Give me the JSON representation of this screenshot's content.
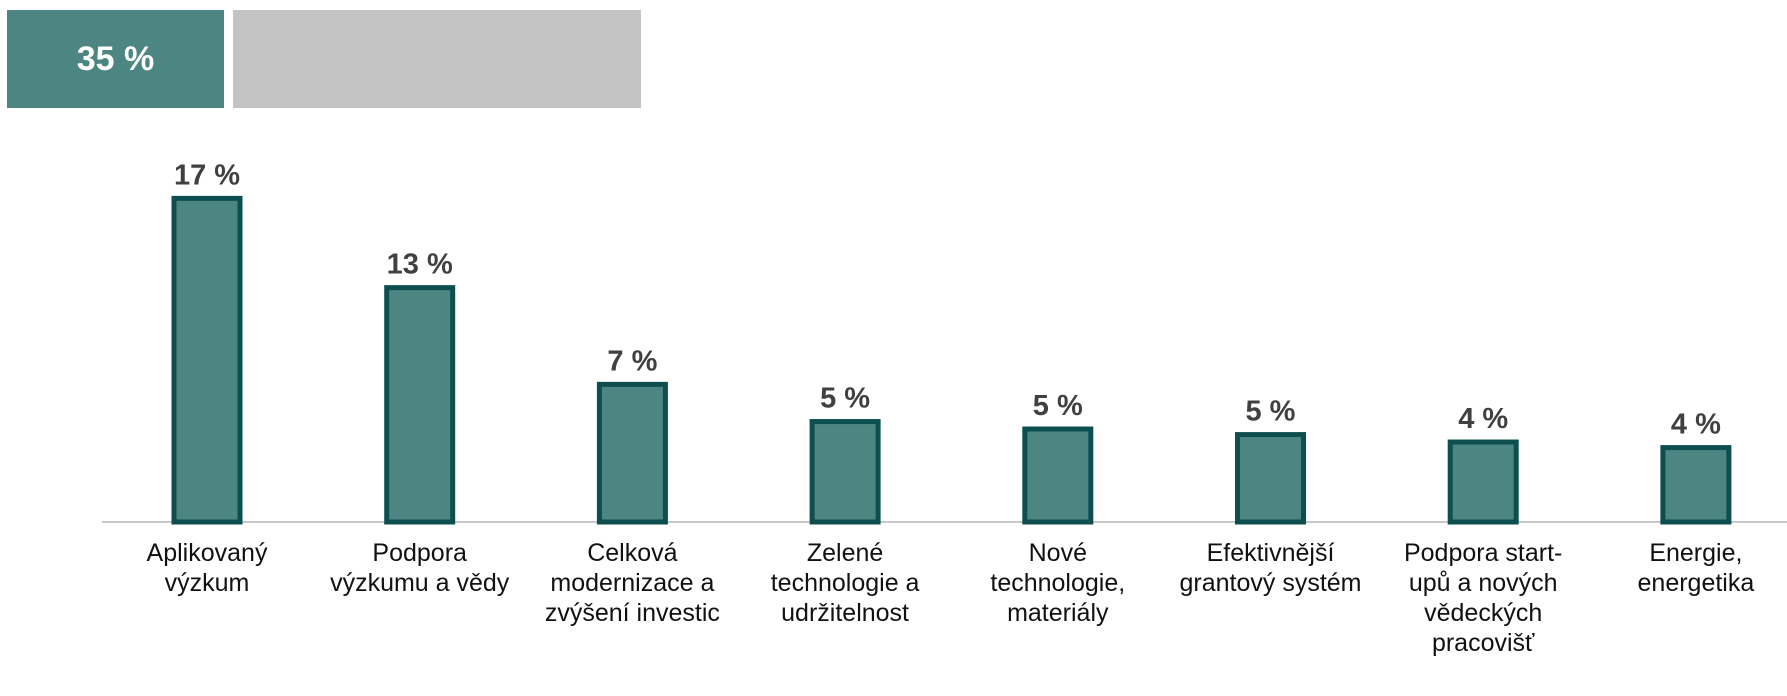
{
  "chart_data": {
    "type": "bar",
    "headline": "35 %",
    "categories": [
      "Aplikovaný výzkum",
      "Podpora výzkumu a vědy",
      "Celková modernizace a zvýšení investic",
      "Zelené technologie a udržitelnost",
      "Nové technologie, materiály",
      "Efektivnější grantový systém",
      "Podpora start-upů a nových vědeckých pracovišť",
      "Energie, energetika"
    ],
    "values": [
      17.4,
      12.6,
      7.4,
      5.4,
      5.0,
      4.7,
      4.3,
      4.0
    ],
    "value_labels": [
      "17 %",
      "13 %",
      "7 %",
      "5 %",
      "5 %",
      "5 %",
      "4 %",
      "4 %"
    ],
    "color": "#4d8582",
    "stroke": "#0d4f4f",
    "ylim": [
      0,
      20
    ]
  }
}
